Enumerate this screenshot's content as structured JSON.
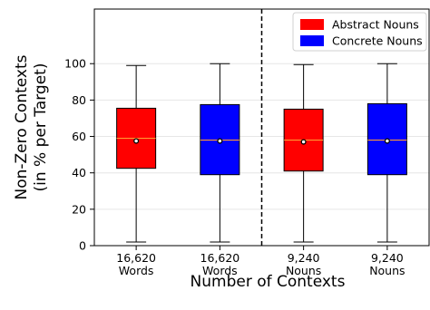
{
  "chart_data": {
    "type": "box",
    "title": "",
    "xlabel": "Number of Contexts",
    "ylabel_lines": [
      "Non-Zero Contexts",
      "(in % per Target)"
    ],
    "ylim": [
      0,
      130
    ],
    "yticks": [
      0,
      20,
      40,
      60,
      80,
      100
    ],
    "grid": "horizontal",
    "legend_position": "top-right",
    "legend": [
      {
        "name": "Abstract Nouns",
        "color": "#ff0000"
      },
      {
        "name": "Concrete Nouns",
        "color": "#0000ff"
      }
    ],
    "divider_after_category": 2,
    "median_color": "#ff9933",
    "boxes": [
      {
        "label_lines": [
          "16,620",
          "Words"
        ],
        "series": "Abstract Nouns",
        "color": "#ff0000",
        "whisker_low": 2,
        "q1": 42.5,
        "median": 59,
        "q3": 75.5,
        "whisker_high": 99,
        "mean": 57.5
      },
      {
        "label_lines": [
          "16,620",
          "Words"
        ],
        "series": "Concrete Nouns",
        "color": "#0000ff",
        "whisker_low": 2,
        "q1": 39,
        "median": 58,
        "q3": 77.5,
        "whisker_high": 100,
        "mean": 57.5
      },
      {
        "label_lines": [
          "9,240",
          "Nouns"
        ],
        "series": "Abstract Nouns",
        "color": "#ff0000",
        "whisker_low": 2,
        "q1": 41,
        "median": 58,
        "q3": 75,
        "whisker_high": 99.5,
        "mean": 57
      },
      {
        "label_lines": [
          "9,240",
          "Nouns"
        ],
        "series": "Concrete Nouns",
        "color": "#0000ff",
        "whisker_low": 2,
        "q1": 39,
        "median": 58,
        "q3": 78,
        "whisker_high": 100,
        "mean": 57.5
      }
    ]
  }
}
